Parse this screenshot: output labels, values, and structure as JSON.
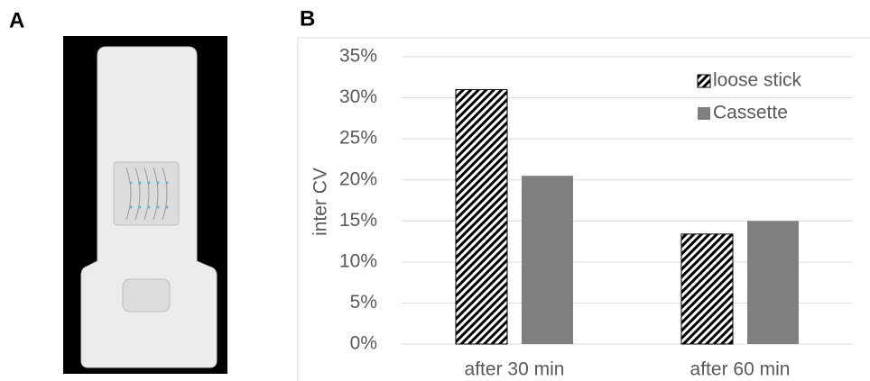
{
  "panel_labels": [
    "A",
    "B"
  ],
  "chart_data": {
    "type": "bar",
    "ylabel": "inter CV",
    "categories": [
      "after 30 min",
      "after 60 min"
    ],
    "series": [
      {
        "name": "loose stick",
        "color": "#000000",
        "pattern": "hatch",
        "values": [
          31,
          13.4
        ]
      },
      {
        "name": "Cassette",
        "color": "#7f7f7f",
        "values": [
          20.5,
          15
        ]
      }
    ],
    "ylim": [
      0,
      35
    ],
    "yticks": [
      {
        "value": 0,
        "label": "0%"
      },
      {
        "value": 5,
        "label": "5%"
      },
      {
        "value": 10,
        "label": "10%"
      },
      {
        "value": 15,
        "label": "15%"
      },
      {
        "value": 20,
        "label": "20%"
      },
      {
        "value": 25,
        "label": "25%"
      },
      {
        "value": 30,
        "label": "30%"
      },
      {
        "value": 35,
        "label": "35%"
      }
    ],
    "grid": true,
    "legend": "top-right"
  }
}
